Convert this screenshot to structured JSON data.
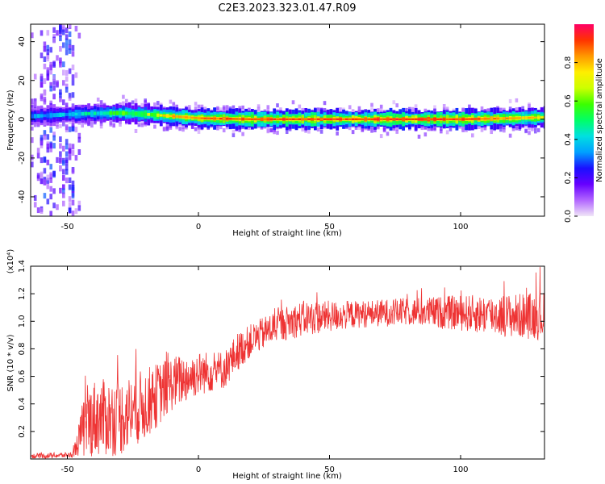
{
  "figure": {
    "title": "C2E3.2023.323.01.47.R09"
  },
  "chart_data": [
    {
      "type": "heatmap",
      "xlabel": "Height of straight line (km)",
      "ylabel": "Frequency (Hz)",
      "xlim": [
        -64,
        132
      ],
      "ylim": [
        -50,
        49
      ],
      "xticks": [
        -50,
        0,
        50,
        100
      ],
      "yticks": [
        -40,
        -20,
        0,
        20,
        40
      ],
      "xtick_labels": [
        "-50",
        "0",
        "50",
        "100"
      ],
      "ytick_labels": [
        "-40",
        "-20",
        "0",
        "20",
        "40"
      ],
      "colorbar": {
        "label": "Normalized spectral amplitude",
        "range": [
          0,
          1
        ],
        "ticks": [
          0.0,
          0.2,
          0.4,
          0.6,
          0.8
        ],
        "tick_labels": [
          "0.0",
          "0.2",
          "0.4",
          "0.6",
          "0.8"
        ],
        "colormap": [
          "#f0e6f7",
          "#b266ff",
          "#6600ff",
          "#1a10ff",
          "#00a0ff",
          "#00e0e0",
          "#00ff66",
          "#3cff00",
          "#ccff00",
          "#ffee00",
          "#ff9900",
          "#ff3300",
          "#ff0066"
        ]
      },
      "ridge": {
        "x": [
          -64,
          -50,
          -40,
          -30,
          -20,
          -10,
          0,
          20,
          40,
          60,
          80,
          100,
          120,
          132
        ],
        "freq": [
          1.5,
          2.5,
          3,
          3.2,
          2.5,
          1.5,
          0.5,
          0,
          0,
          0,
          0,
          0,
          0.5,
          1
        ],
        "peak_amplitude": [
          0.4,
          0.45,
          0.55,
          0.65,
          0.75,
          0.85,
          0.9,
          0.95,
          0.95,
          0.95,
          0.97,
          0.95,
          0.85,
          0.8
        ]
      },
      "scatter_bands_x": [
        -58,
        -51
      ]
    },
    {
      "type": "line",
      "xlabel": "Height of straight line (km)",
      "ylabel": "SNR (10 * v/v)",
      "y_multiplier": "(x10⁴)",
      "xlim": [
        -64,
        132
      ],
      "ylim": [
        0,
        1.4
      ],
      "xticks": [
        -50,
        0,
        50,
        100
      ],
      "yticks": [
        0.2,
        0.4,
        0.6,
        0.8,
        1.0,
        1.2,
        1.4
      ],
      "xtick_labels": [
        "-50",
        "0",
        "50",
        "100"
      ],
      "ytick_labels": [
        "0.2",
        "0.4",
        "0.6",
        "0.8",
        "1.0",
        "1.2",
        "1.4"
      ],
      "color": "#ee3333",
      "envelope": {
        "x": [
          -64,
          -48,
          -46,
          -44,
          -40,
          -30,
          -20,
          -10,
          0,
          10,
          15,
          20,
          30,
          40,
          60,
          80,
          100,
          120,
          132
        ],
        "mean": [
          0.02,
          0.03,
          0.12,
          0.22,
          0.3,
          0.3,
          0.4,
          0.55,
          0.62,
          0.65,
          0.78,
          0.86,
          0.97,
          1.02,
          1.05,
          1.07,
          1.06,
          1.04,
          1.04
        ],
        "spread": [
          0.02,
          0.02,
          0.1,
          0.22,
          0.28,
          0.28,
          0.26,
          0.2,
          0.16,
          0.14,
          0.14,
          0.12,
          0.12,
          0.13,
          0.1,
          0.1,
          0.13,
          0.16,
          0.18
        ]
      }
    }
  ]
}
